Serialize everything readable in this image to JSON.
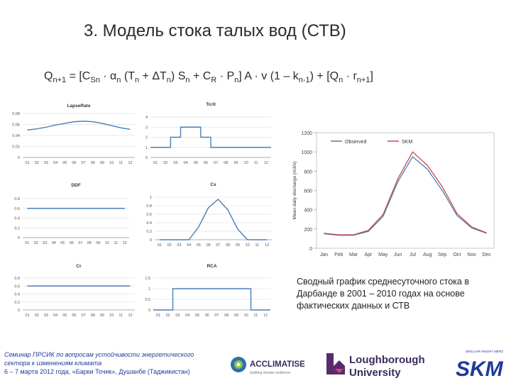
{
  "slide": {
    "title": "3. Модель стока талых вод (СТВ)",
    "formula": {
      "parts": [
        "Q",
        "n+1",
        " = [C",
        "Sn",
        " · α",
        "n",
        " (T",
        "n",
        " + ΔT",
        "n",
        ") S",
        "n",
        " + C",
        "R",
        " · P",
        "n",
        "] A · v (1 – k",
        "n-1",
        ") + [Q",
        "n",
        " · r",
        "n+1",
        "]"
      ]
    },
    "caption": "Сводный график среднесуточного стока в Дарбанде в 2001 – 2010 годах на основе фактических данных и СТВ",
    "seminar_lines": [
      "Семинар ПРСИК по вопросам устойчивости энергетического",
      "сектора к изменениям климата",
      "6 – 7 марта 2012 года, «Барки Точик», Душанбе (Таджикистан)"
    ],
    "logos": {
      "acclimatise": "ACCLIMATISE",
      "acclimatise_tag": "building climate resilience",
      "loughborough_1": "Loughborough",
      "loughborough_2": "University",
      "skm_tag": "SINCLAIR KNIGHT MERZ",
      "skm": "SKM"
    }
  },
  "chart_data": [
    {
      "type": "line",
      "title": "LapseRate",
      "x": [
        "01",
        "02",
        "03",
        "04",
        "05",
        "06",
        "07",
        "08",
        "09",
        "10",
        "11",
        "12"
      ],
      "series": [
        {
          "values": [
            0.05,
            0.052,
            0.055,
            0.059,
            0.062,
            0.065,
            0.066,
            0.065,
            0.062,
            0.058,
            0.054,
            0.051
          ]
        }
      ],
      "ylim": [
        0,
        0.08
      ],
      "yticks": [
        "0",
        "0.02",
        "0.04",
        "0.06",
        "0.08"
      ],
      "color": "#4a7fb5"
    },
    {
      "type": "line",
      "step": true,
      "title": "Tcrit",
      "x": [
        "01",
        "02",
        "03",
        "04",
        "05",
        "06",
        "07",
        "08",
        "09",
        "10",
        "11",
        "12"
      ],
      "series": [
        {
          "values": [
            1,
            1,
            2,
            3,
            3,
            2,
            1,
            1,
            1,
            1,
            1,
            1
          ]
        }
      ],
      "ylim": [
        0,
        4
      ],
      "yticks": [
        "0",
        "1",
        "2",
        "3",
        "4"
      ],
      "color": "#4a7fb5"
    },
    {
      "type": "line",
      "title": "DDF",
      "x": [
        "01",
        "02",
        "03",
        "04",
        "05",
        "06",
        "07",
        "08",
        "09",
        "10",
        "11",
        "12"
      ],
      "series": [
        {
          "values": [
            0.6,
            0.6,
            0.6,
            0.6,
            0.6,
            0.6,
            0.6,
            0.6,
            0.6,
            0.6,
            0.6,
            0.6
          ]
        }
      ],
      "ylim": [
        0,
        0.8
      ],
      "yticks": [
        "0",
        "0.2",
        "0.4",
        "0.6",
        "0.8"
      ],
      "color": "#4a7fb5"
    },
    {
      "type": "line",
      "title": "Cs",
      "x": [
        "01",
        "02",
        "03",
        "04",
        "05",
        "06",
        "07",
        "08",
        "09",
        "10",
        "11",
        "12"
      ],
      "series": [
        {
          "values": [
            0,
            0,
            0,
            0,
            0.3,
            0.75,
            0.95,
            0.7,
            0.25,
            0,
            0,
            0
          ]
        }
      ],
      "ylim": [
        0,
        1
      ],
      "yticks": [
        "0",
        "0.2",
        "0.4",
        "0.6",
        "0.8",
        "1"
      ],
      "color": "#4a7fb5"
    },
    {
      "type": "line",
      "title": "Cr",
      "x": [
        "01",
        "02",
        "03",
        "04",
        "05",
        "06",
        "07",
        "08",
        "09",
        "10",
        "11",
        "12"
      ],
      "series": [
        {
          "values": [
            0.6,
            0.6,
            0.6,
            0.6,
            0.6,
            0.6,
            0.6,
            0.6,
            0.6,
            0.6,
            0.6,
            0.6
          ]
        }
      ],
      "ylim": [
        0,
        0.8
      ],
      "yticks": [
        "0",
        "0.2",
        "0.4",
        "0.6",
        "0.8"
      ],
      "color": "#4a7fb5"
    },
    {
      "type": "line",
      "step": true,
      "title": "RCA",
      "x": [
        "01",
        "02",
        "03",
        "04",
        "05",
        "06",
        "07",
        "08",
        "09",
        "10",
        "11",
        "12"
      ],
      "series": [
        {
          "values": [
            0,
            0,
            1,
            1,
            1,
            1,
            1,
            1,
            1,
            1,
            0,
            0
          ]
        }
      ],
      "ylim": [
        0,
        1.5
      ],
      "yticks": [
        "0",
        "0.5",
        "1",
        "1.5"
      ],
      "color": "#4a7fb5"
    },
    {
      "type": "line",
      "title": "",
      "ylabel": "Mean daily discharge (m3/s)",
      "x": [
        "Jan",
        "Feb",
        "Mar",
        "Apr",
        "May",
        "Jun",
        "Jul",
        "Aug",
        "Sep",
        "Oct",
        "Nov",
        "Dec"
      ],
      "yticks": [
        "0",
        "200",
        "400",
        "600",
        "800",
        "1000",
        "1200"
      ],
      "ylim": [
        0,
        1200
      ],
      "legend_position": "top",
      "series": [
        {
          "name": "Observed",
          "color": "#4a7fb5",
          "values": [
            150,
            135,
            135,
            175,
            330,
            690,
            950,
            820,
            600,
            340,
            210,
            155
          ]
        },
        {
          "name": "SKM",
          "color": "#c9474a",
          "values": [
            155,
            140,
            140,
            185,
            350,
            720,
            1000,
            860,
            640,
            360,
            220,
            160
          ]
        }
      ]
    }
  ]
}
